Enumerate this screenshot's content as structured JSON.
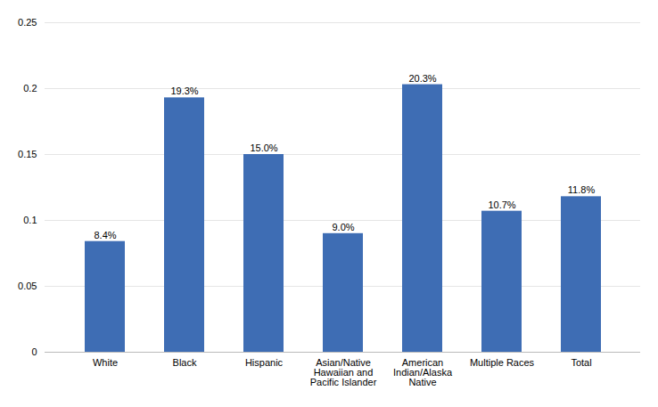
{
  "chart_data": {
    "type": "bar",
    "categories": [
      "White",
      "Black",
      "Hispanic",
      "Asian/Native\nHawaiian and\nPacific Islander",
      "American\nIndian/Alaska\nNative",
      "Multiple Races",
      "Total"
    ],
    "values": [
      0.084,
      0.193,
      0.15,
      0.09,
      0.203,
      0.107,
      0.118
    ],
    "value_labels": [
      "8.4%",
      "19.3%",
      "15.0%",
      "9.0%",
      "20.3%",
      "10.7%",
      "11.8%"
    ],
    "data_labels": true,
    "color": "#3E6DB4",
    "ylim": [
      0,
      0.25
    ],
    "yticks": [
      0,
      0.05,
      0.1,
      0.15,
      0.2,
      0.25
    ],
    "grid": true
  }
}
